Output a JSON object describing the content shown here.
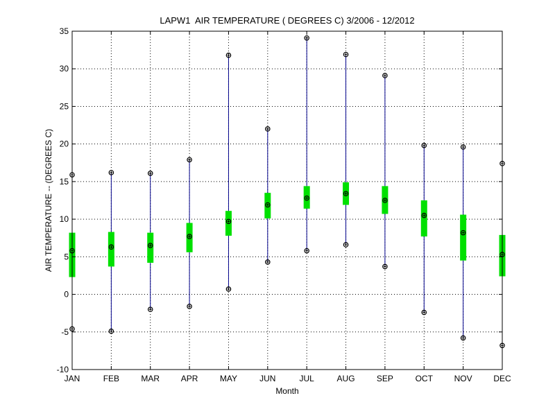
{
  "chart_data": {
    "type": "boxplot",
    "title": "LAPW1  AIR TEMPERATURE ( DEGREES C) 3/2006 - 12/2012",
    "xlabel": "Month",
    "ylabel": "AIR TEMPERATURE -- (DEGREES C)",
    "ylim": [
      -10,
      35
    ],
    "yticks": [
      -10,
      -5,
      0,
      5,
      10,
      15,
      20,
      25,
      30,
      35
    ],
    "grid": true,
    "categories": [
      "JAN",
      "FEB",
      "MAR",
      "APR",
      "MAY",
      "JUN",
      "JUL",
      "AUG",
      "SEP",
      "OCT",
      "NOV",
      "DEC"
    ],
    "max": [
      15.9,
      16.2,
      16.1,
      17.9,
      31.8,
      22.0,
      34.1,
      31.9,
      29.1,
      19.8,
      19.6,
      17.4
    ],
    "q3": [
      8.2,
      8.3,
      8.2,
      9.5,
      11.1,
      13.5,
      14.4,
      14.9,
      14.4,
      12.5,
      10.6,
      7.9
    ],
    "mean": [
      5.8,
      6.3,
      6.5,
      7.7,
      9.7,
      11.9,
      12.8,
      13.4,
      12.5,
      10.5,
      8.2,
      5.3
    ],
    "q1": [
      2.3,
      3.7,
      4.2,
      5.6,
      7.8,
      10.1,
      11.4,
      11.9,
      10.7,
      7.7,
      4.5,
      2.4
    ],
    "min": [
      -4.6,
      -4.9,
      -2.0,
      -1.6,
      0.7,
      4.3,
      5.8,
      6.6,
      3.7,
      -2.4,
      -5.8,
      -6.8
    ],
    "colors": {
      "whisker": "#00008b",
      "box": "#00e000",
      "marker": "#000000",
      "grid": "#000000",
      "axis": "#000000"
    }
  }
}
